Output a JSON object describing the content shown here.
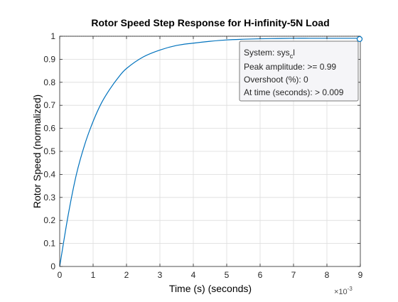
{
  "chart_data": {
    "type": "line",
    "title": "Rotor Speed Step Response for H-infinity-5N Load",
    "xlabel": "Time (s) (seconds)",
    "ylabel": "Rotor Speed (normalized)",
    "x_exponent_base": "×10",
    "x_exponent_power": "-3",
    "xlim": [
      0,
      9
    ],
    "ylim": [
      0,
      1
    ],
    "xticks": [
      "0",
      "1",
      "2",
      "3",
      "4",
      "5",
      "6",
      "7",
      "8",
      "9"
    ],
    "yticks": [
      "0",
      "0.1",
      "0.2",
      "0.3",
      "0.4",
      "0.5",
      "0.6",
      "0.7",
      "0.8",
      "0.9",
      "1"
    ],
    "grid": true,
    "series": [
      {
        "x": [
          0,
          0.25,
          0.5,
          0.75,
          1,
          1.25,
          1.5,
          1.75,
          2,
          2.5,
          3,
          3.5,
          4,
          4.5,
          5,
          5.5,
          6,
          6.5,
          7,
          7.5,
          8,
          8.5,
          9
        ],
        "values": [
          0,
          0.22,
          0.4,
          0.53,
          0.63,
          0.71,
          0.77,
          0.82,
          0.86,
          0.91,
          0.94,
          0.96,
          0.97,
          0.978,
          0.984,
          0.987,
          0.989,
          0.99,
          0.991,
          0.991,
          0.991,
          0.991,
          0.991
        ]
      }
    ],
    "reference_line_y": 1,
    "marker_point": {
      "x": 9,
      "y": 0.991
    },
    "colors": {
      "line": "#0072bd",
      "grid": "#dcdcdc",
      "axis": "#262626",
      "datatip_bg": "#f5f5f8",
      "datatip_border": "#7a7a7a"
    },
    "datatip": {
      "system_label": "System: sys",
      "system_sub": "c",
      "system_tail": "l",
      "peak": "Peak amplitude: >= 0.99",
      "overshoot": "Overshoot (%): 0",
      "at_time": "At time (seconds): > 0.009"
    }
  }
}
